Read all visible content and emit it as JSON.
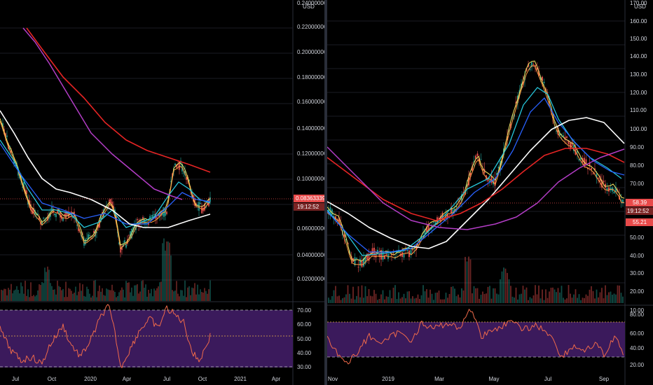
{
  "colors": {
    "background": "#000000",
    "grid": "#1a1d24",
    "axis_text": "#d1d4dc",
    "candle_up": "#26a69a",
    "candle_down": "#ef5350",
    "ema_fast": "#f5e663",
    "ema_mid": "#ff9f43",
    "ema_teal": "#26c6da",
    "ema_blue": "#2962ff",
    "ma_white": "#ffffff",
    "ma_red": "#e52424",
    "ma_purple": "#b33dc6",
    "rsi_bg": "#3b1a5c",
    "rsi_line": "#f06a4a",
    "price_tag": "#e84a4a"
  },
  "left_chart": {
    "currency": "USD",
    "price_tag": "0.08363339",
    "time_tag": "19:12:52",
    "y_ticks": [
      "0.24000000",
      "0.22000000",
      "0.20000000",
      "0.18000000",
      "0.16000000",
      "0.14000000",
      "0.12000000",
      "0.10000000",
      "0.06000000",
      "0.04000000",
      "0.02000000"
    ],
    "x_ticks": [
      "Jul",
      "Oct",
      "2020",
      "Apr",
      "Jul",
      "Oct",
      "2021",
      "Apr"
    ],
    "rsi_ticks": [
      "70.00",
      "60.00",
      "50.00",
      "40.00",
      "30.00"
    ]
  },
  "right_chart": {
    "currency": "USD",
    "price_tag_1": "58.39",
    "time_tag": "19:12:52",
    "price_tag_2": "55.21",
    "y_ticks": [
      "170.00",
      "160.00",
      "150.00",
      "140.00",
      "130.00",
      "120.00",
      "110.00",
      "100.00",
      "90.00",
      "80.00",
      "70.00",
      "50.00",
      "40.00",
      "30.00",
      "20.00",
      "10.00"
    ],
    "x_ticks": [
      "Nov",
      "2019",
      "Mar",
      "May",
      "Jul",
      "Sep"
    ],
    "rsi_ticks": [
      "80.00",
      "60.00",
      "40.00",
      "20.00"
    ]
  }
}
